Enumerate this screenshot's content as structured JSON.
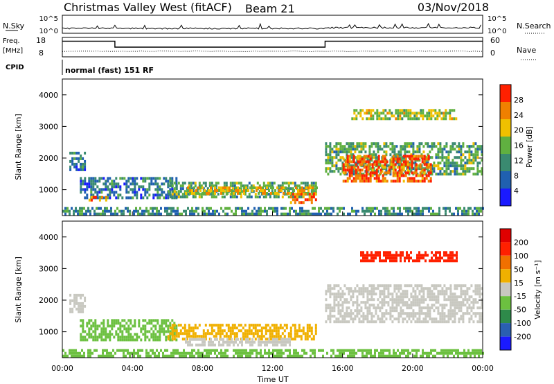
{
  "header": {
    "station": "Christmas Valley West (fitACF)",
    "beam": "Beam 21",
    "date": "03/Nov/2018"
  },
  "strip": {
    "nsky_label": "N.Sky",
    "nsearch_label": "N.Search",
    "left_ticks": [
      "10^5",
      "10^0"
    ],
    "right_ticks": [
      "10^5",
      "10^0"
    ],
    "freq_label": "Freq.",
    "freq_unit": "[MHz]",
    "freq_ticks": [
      "18",
      "8"
    ],
    "nave_label": "Nave",
    "nave_ticks": [
      "60",
      "0"
    ],
    "cpid_label": "CPID",
    "cpid_text": "normal (fast) 151 RF"
  },
  "power_panel": {
    "ylabel": "Slant Range [km]",
    "yticks": [
      "1000",
      "2000",
      "3000",
      "4000"
    ],
    "cbar_label": "Power [dB]",
    "cbar_ticks": [
      "4",
      "8",
      "12",
      "16",
      "20",
      "24",
      "28"
    ],
    "cbar_colors": [
      "#1a1aff",
      "#2060b0",
      "#3a8a70",
      "#60b040",
      "#f0c000",
      "#f08000",
      "#ff2000"
    ]
  },
  "velocity_panel": {
    "ylabel": "Slant Range [km]",
    "yticks": [
      "1000",
      "2000",
      "3000",
      "4000"
    ],
    "cbar_label": "Velocity [m s⁻¹]",
    "cbar_ticks": [
      "200",
      "100",
      "50",
      "15",
      "-15",
      "-50",
      "-100",
      "-200"
    ],
    "cbar_colors": [
      "#1a1aff",
      "#2a5fb0",
      "#2e8a4a",
      "#6cc040",
      "#c8c8c0",
      "#f0b000",
      "#f07000",
      "#ff2000",
      "#e00000"
    ]
  },
  "xaxis": {
    "ticks": [
      "00:00",
      "04:00",
      "08:00",
      "12:00",
      "16:00",
      "20:00",
      "00:00"
    ],
    "label": "Time UT"
  },
  "chart_data": {
    "type": "heatmap",
    "x_range_hours": [
      0,
      24
    ],
    "y_range_km": [
      180,
      4500
    ],
    "freq_mhz": [
      {
        "start": 0,
        "end": 3,
        "value": 15.5
      },
      {
        "start": 3,
        "end": 15,
        "value": 11.5
      },
      {
        "start": 15,
        "end": 24,
        "value": 15.5
      }
    ],
    "power_regions": [
      {
        "t0": 0.4,
        "t1": 1.3,
        "r0": 1600,
        "r1": 2200,
        "db": 8
      },
      {
        "t0": 1.0,
        "t1": 6.5,
        "r0": 750,
        "r1": 1400,
        "db": 8
      },
      {
        "t0": 1.5,
        "t1": 2.5,
        "r0": 650,
        "r1": 800,
        "db": 20
      },
      {
        "t0": 6.0,
        "t1": 14.5,
        "r0": 750,
        "r1": 1250,
        "db": 12
      },
      {
        "t0": 7.0,
        "t1": 14.5,
        "r0": 850,
        "r1": 1100,
        "db": 18
      },
      {
        "t0": 13.0,
        "t1": 14.5,
        "r0": 600,
        "r1": 900,
        "db": 24
      },
      {
        "t0": 15.0,
        "t1": 24.0,
        "r0": 1500,
        "r1": 2500,
        "db": 12
      },
      {
        "t0": 16.0,
        "t1": 21.0,
        "r0": 1300,
        "r1": 2100,
        "db": 24
      },
      {
        "t0": 16.5,
        "t1": 22.5,
        "r0": 3200,
        "r1": 3550,
        "db": 16
      },
      {
        "t0": 0.0,
        "t1": 24.0,
        "r0": 200,
        "r1": 450,
        "db": 10
      }
    ],
    "velocity_regions": [
      {
        "t0": 0.4,
        "t1": 1.3,
        "r0": 1600,
        "r1": 2200,
        "v": 0
      },
      {
        "t0": 1.0,
        "t1": 6.5,
        "r0": 750,
        "r1": 1400,
        "v": 30
      },
      {
        "t0": 6.0,
        "t1": 14.5,
        "r0": 750,
        "r1": 1250,
        "v": -40
      },
      {
        "t0": 7.0,
        "t1": 13.0,
        "r0": 600,
        "r1": 800,
        "v": 0
      },
      {
        "t0": 15.0,
        "t1": 24.0,
        "r0": 1300,
        "r1": 2500,
        "v": 0
      },
      {
        "t0": 17.0,
        "t1": 22.5,
        "r0": 3200,
        "r1": 3550,
        "v": -180
      },
      {
        "t0": 0.0,
        "t1": 24.0,
        "r0": 200,
        "r1": 450,
        "v": 30
      }
    ]
  }
}
